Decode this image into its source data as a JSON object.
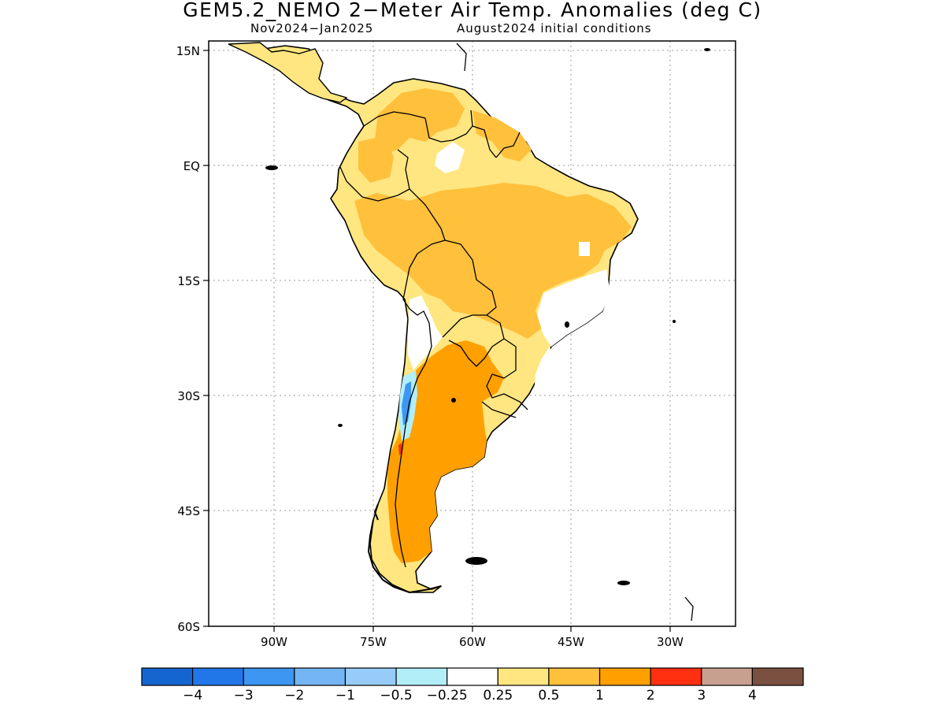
{
  "title": "GEM5.2_NEMO 2−Meter Air Temp. Anomalies (deg C)",
  "subtitle_left": "Nov2024−Jan2025",
  "subtitle_right": "August2024 initial conditions",
  "axes": {
    "lat_labels": [
      "15N",
      "EQ",
      "15S",
      "30S",
      "45S",
      "60S"
    ],
    "lon_labels": [
      "90W",
      "75W",
      "60W",
      "45W",
      "30W"
    ],
    "lat_range": [
      -60,
      15
    ],
    "lon_range": [
      -100,
      -20
    ],
    "grid": true
  },
  "legend": {
    "colors": [
      "#1565d0",
      "#2277e8",
      "#3d96f2",
      "#74b6f5",
      "#97ccf8",
      "#b2eef8",
      "#ffffff",
      "#ffe680",
      "#ffc03c",
      "#ffa000",
      "#ff3010",
      "#c8a090",
      "#7a5040"
    ],
    "labels": [
      "−4",
      "−3",
      "−2",
      "−1",
      "−0.5",
      "−0.25",
      "0.25",
      "0.5",
      "1",
      "2",
      "3",
      "4"
    ]
  }
}
